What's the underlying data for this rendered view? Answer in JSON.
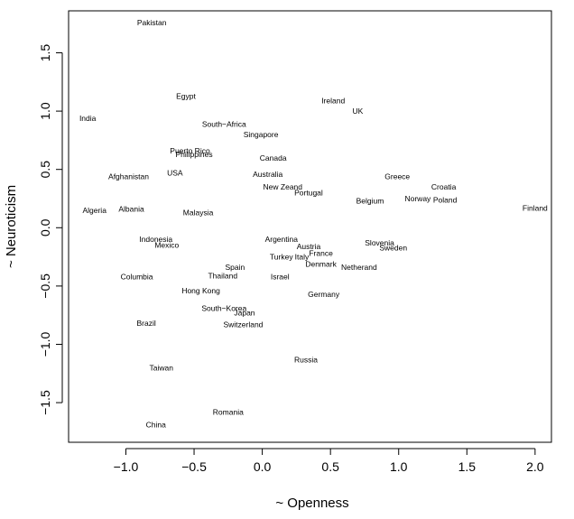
{
  "chart_data": {
    "type": "scatter",
    "title": "",
    "xlabel": "~ Openness",
    "ylabel": "~ Neuroticism",
    "xlim": [
      -1.42,
      2.12
    ],
    "ylim": [
      -1.84,
      1.86
    ],
    "x_ticks": [
      -1.0,
      -0.5,
      0.0,
      0.5,
      1.0,
      1.5,
      2.0
    ],
    "x_tick_labels": [
      "−1.0",
      "−0.5",
      "0.0",
      "0.5",
      "1.0",
      "1.5",
      "2.0"
    ],
    "y_ticks": [
      -1.5,
      -1.0,
      -0.5,
      0.0,
      0.5,
      1.0,
      1.5
    ],
    "y_tick_labels": [
      "−1.5",
      "−1.0",
      "−0.5",
      "0.0",
      "0.5",
      "1.0",
      "1.5"
    ],
    "grid": false,
    "points": [
      {
        "label": "Pakistan",
        "x": -0.81,
        "y": 1.76
      },
      {
        "label": "Egypt",
        "x": -0.56,
        "y": 1.13
      },
      {
        "label": "India",
        "x": -1.28,
        "y": 0.94
      },
      {
        "label": "Ireland",
        "x": 0.52,
        "y": 1.09
      },
      {
        "label": "UK",
        "x": 0.7,
        "y": 1.0
      },
      {
        "label": "South−Africa",
        "x": -0.28,
        "y": 0.89
      },
      {
        "label": "Singapore",
        "x": -0.01,
        "y": 0.8
      },
      {
        "label": "Puerto Rico",
        "x": -0.53,
        "y": 0.66
      },
      {
        "label": "Philippines",
        "x": -0.5,
        "y": 0.63
      },
      {
        "label": "Canada",
        "x": 0.08,
        "y": 0.6
      },
      {
        "label": "USA",
        "x": -0.64,
        "y": 0.47
      },
      {
        "label": "Afghanistan",
        "x": -0.98,
        "y": 0.44
      },
      {
        "label": "Australia",
        "x": 0.04,
        "y": 0.46
      },
      {
        "label": "Greece",
        "x": 0.99,
        "y": 0.44
      },
      {
        "label": "New Zeand",
        "x": 0.15,
        "y": 0.35
      },
      {
        "label": "Croatia",
        "x": 1.33,
        "y": 0.35
      },
      {
        "label": "Portugal",
        "x": 0.34,
        "y": 0.3
      },
      {
        "label": "Norway",
        "x": 1.14,
        "y": 0.25
      },
      {
        "label": "Poland",
        "x": 1.34,
        "y": 0.24
      },
      {
        "label": "Belgium",
        "x": 0.79,
        "y": 0.23
      },
      {
        "label": "Algeria",
        "x": -1.23,
        "y": 0.15
      },
      {
        "label": "Albania",
        "x": -0.96,
        "y": 0.16
      },
      {
        "label": "Malaysia",
        "x": -0.47,
        "y": 0.13
      },
      {
        "label": "Finland",
        "x": 2.0,
        "y": 0.17
      },
      {
        "label": "Indonesia",
        "x": -0.78,
        "y": -0.1
      },
      {
        "label": "Argentina",
        "x": 0.14,
        "y": -0.1
      },
      {
        "label": "Mexico",
        "x": -0.7,
        "y": -0.15
      },
      {
        "label": "Austria",
        "x": 0.34,
        "y": -0.16
      },
      {
        "label": "Slovenia",
        "x": 0.86,
        "y": -0.13
      },
      {
        "label": "Sweden",
        "x": 0.96,
        "y": -0.17
      },
      {
        "label": "France",
        "x": 0.43,
        "y": -0.22
      },
      {
        "label": "Turkey",
        "x": 0.14,
        "y": -0.25
      },
      {
        "label": "Italy",
        "x": 0.29,
        "y": -0.25
      },
      {
        "label": "Denmark",
        "x": 0.43,
        "y": -0.31
      },
      {
        "label": "Netherand",
        "x": 0.71,
        "y": -0.34
      },
      {
        "label": "Spain",
        "x": -0.2,
        "y": -0.34
      },
      {
        "label": "Thailand",
        "x": -0.29,
        "y": -0.41
      },
      {
        "label": "Columbia",
        "x": -0.92,
        "y": -0.42
      },
      {
        "label": "Israel",
        "x": 0.13,
        "y": -0.42
      },
      {
        "label": "Hong Kong",
        "x": -0.45,
        "y": -0.54
      },
      {
        "label": "Germany",
        "x": 0.45,
        "y": -0.57
      },
      {
        "label": "South−Korea",
        "x": -0.28,
        "y": -0.69
      },
      {
        "label": "Japan",
        "x": -0.13,
        "y": -0.73
      },
      {
        "label": "Switzerland",
        "x": -0.14,
        "y": -0.83
      },
      {
        "label": "Brazil",
        "x": -0.85,
        "y": -0.82
      },
      {
        "label": "Russia",
        "x": 0.32,
        "y": -1.13
      },
      {
        "label": "Taiwan",
        "x": -0.74,
        "y": -1.2
      },
      {
        "label": "Romania",
        "x": -0.25,
        "y": -1.58
      },
      {
        "label": "China",
        "x": -0.78,
        "y": -1.69
      }
    ]
  }
}
